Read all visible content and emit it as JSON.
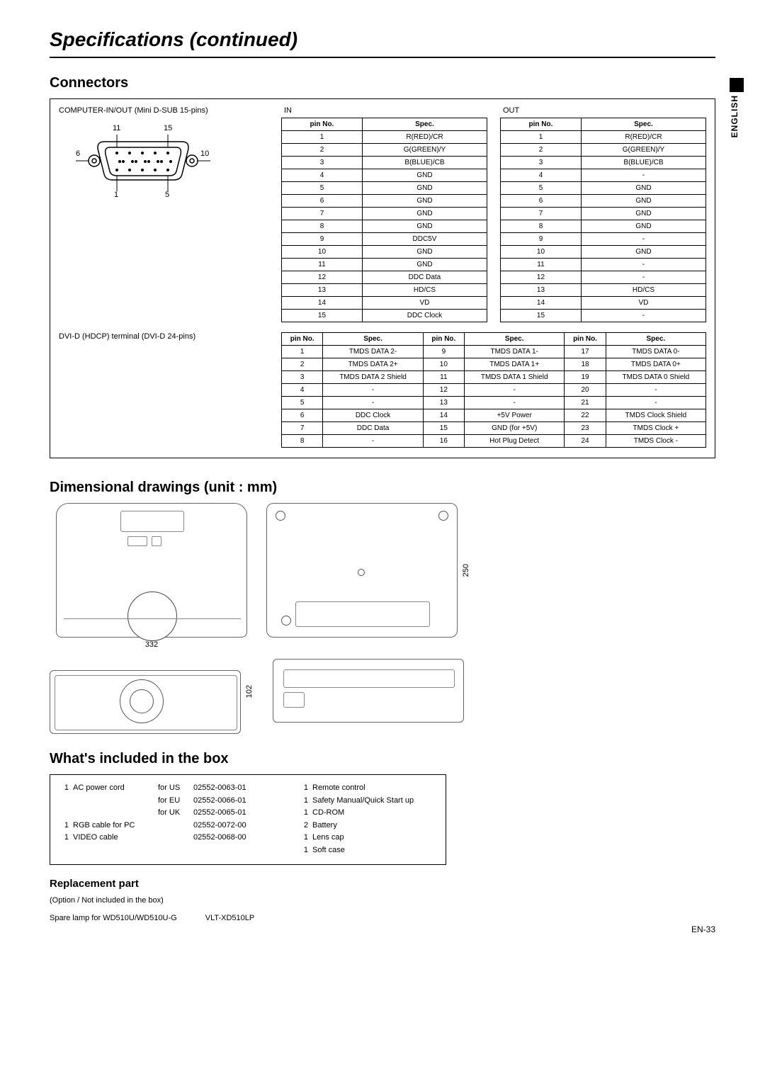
{
  "page_title": "Specifications (continued)",
  "language_tab": "ENGLISH",
  "page_number": "EN-33",
  "connectors": {
    "title": "Connectors",
    "dsub_label": "COMPUTER-IN/OUT (Mini D-SUB 15-pins)",
    "dsub_pins": {
      "tl": "11",
      "tr": "15",
      "ml": "6",
      "mr": "10",
      "bl": "1",
      "br": "5"
    },
    "in_label": "IN",
    "out_label": "OUT",
    "header_pin": "pin No.",
    "header_spec": "Spec.",
    "in_rows": [
      [
        "1",
        "R(RED)/CR"
      ],
      [
        "2",
        "G(GREEN)/Y"
      ],
      [
        "3",
        "B(BLUE)/CB"
      ],
      [
        "4",
        "GND"
      ],
      [
        "5",
        "GND"
      ],
      [
        "6",
        "GND"
      ],
      [
        "7",
        "GND"
      ],
      [
        "8",
        "GND"
      ],
      [
        "9",
        "DDC5V"
      ],
      [
        "10",
        "GND"
      ],
      [
        "11",
        "GND"
      ],
      [
        "12",
        "DDC Data"
      ],
      [
        "13",
        "HD/CS"
      ],
      [
        "14",
        "VD"
      ],
      [
        "15",
        "DDC Clock"
      ]
    ],
    "out_rows": [
      [
        "1",
        "R(RED)/CR"
      ],
      [
        "2",
        "G(GREEN)/Y"
      ],
      [
        "3",
        "B(BLUE)/CB"
      ],
      [
        "4",
        "-"
      ],
      [
        "5",
        "GND"
      ],
      [
        "6",
        "GND"
      ],
      [
        "7",
        "GND"
      ],
      [
        "8",
        "GND"
      ],
      [
        "9",
        "-"
      ],
      [
        "10",
        "GND"
      ],
      [
        "11",
        "-"
      ],
      [
        "12",
        "-"
      ],
      [
        "13",
        "HD/CS"
      ],
      [
        "14",
        "VD"
      ],
      [
        "15",
        "-"
      ]
    ],
    "dvi_label": "DVI-D (HDCP) terminal (DVI-D 24-pins)",
    "dvi_rows": [
      [
        "1",
        "TMDS DATA 2-",
        "9",
        "TMDS DATA 1-",
        "17",
        "TMDS DATA 0-"
      ],
      [
        "2",
        "TMDS DATA 2+",
        "10",
        "TMDS DATA 1+",
        "18",
        "TMDS DATA 0+"
      ],
      [
        "3",
        "TMDS DATA 2 Shield",
        "11",
        "TMDS DATA 1 Shield",
        "19",
        "TMDS DATA 0 Shield"
      ],
      [
        "4",
        "-",
        "12",
        "-",
        "20",
        "-"
      ],
      [
        "5",
        "-",
        "13",
        "-",
        "21",
        "-"
      ],
      [
        "6",
        "DDC Clock",
        "14",
        "+5V Power",
        "22",
        "TMDS Clock Shield"
      ],
      [
        "7",
        "DDC Data",
        "15",
        "GND (for +5V)",
        "23",
        "TMDS Clock +"
      ],
      [
        "8",
        "-",
        "16",
        "Hot Plug Detect",
        "24",
        "TMDS Clock -"
      ]
    ]
  },
  "dimensional": {
    "title": "Dimensional drawings (unit : mm)",
    "width": "332",
    "height": "250",
    "depth": "102"
  },
  "included": {
    "title": "What's included in the box",
    "left": [
      {
        "qty": "1",
        "item": "AC power cord",
        "for": "for US",
        "part": "02552-0063-01"
      },
      {
        "qty": "",
        "item": "",
        "for": "for EU",
        "part": "02552-0066-01"
      },
      {
        "qty": "",
        "item": "",
        "for": "for UK",
        "part": "02552-0065-01"
      },
      {
        "qty": "1",
        "item": "RGB cable for PC",
        "for": "",
        "part": "02552-0072-00"
      },
      {
        "qty": "1",
        "item": "VIDEO cable",
        "for": "",
        "part": "02552-0068-00"
      }
    ],
    "right": [
      {
        "qty": "1",
        "item": "Remote control"
      },
      {
        "qty": "1",
        "item": "Safety Manual/Quick Start up"
      },
      {
        "qty": "1",
        "item": "CD-ROM"
      },
      {
        "qty": "2",
        "item": "Battery"
      },
      {
        "qty": "1",
        "item": "Lens cap"
      },
      {
        "qty": "1",
        "item": "Soft case"
      }
    ]
  },
  "replacement": {
    "title": "Replacement part",
    "note": "(Option / Not included in the box)",
    "item": "Spare lamp for WD510U/WD510U-G",
    "part": "VLT-XD510LP"
  }
}
